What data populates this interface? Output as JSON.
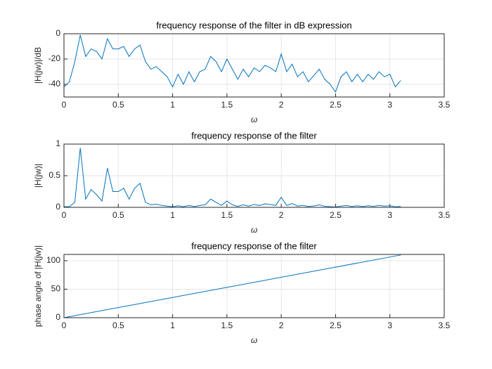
{
  "chart_data": [
    {
      "type": "line",
      "title": "frequency response of the filter in dB expression",
      "xlabel": "ω",
      "ylabel": "|H(jw)|/dB",
      "x": [
        0,
        0.05,
        0.1,
        0.15,
        0.2,
        0.25,
        0.3,
        0.35,
        0.4,
        0.45,
        0.5,
        0.55,
        0.6,
        0.65,
        0.7,
        0.75,
        0.8,
        0.85,
        0.9,
        0.95,
        1,
        1.05,
        1.1,
        1.15,
        1.2,
        1.25,
        1.3,
        1.35,
        1.4,
        1.45,
        1.5,
        1.55,
        1.6,
        1.65,
        1.7,
        1.75,
        1.8,
        1.85,
        1.9,
        1.95,
        2,
        2.05,
        2.1,
        2.15,
        2.2,
        2.25,
        2.3,
        2.35,
        2.4,
        2.45,
        2.5,
        2.55,
        2.6,
        2.65,
        2.7,
        2.75,
        2.8,
        2.85,
        2.9,
        2.95,
        3,
        3.05,
        3.1
      ],
      "series": [
        {
          "color": "#0072bd",
          "values": [
            -42,
            -38,
            -22,
            -1,
            -18,
            -12,
            -14,
            -20,
            -4,
            -12,
            -12,
            -10,
            -18,
            -12,
            -9,
            -22,
            -28,
            -26,
            -30,
            -34,
            -42,
            -32,
            -40,
            -30,
            -38,
            -30,
            -28,
            -18,
            -22,
            -30,
            -20,
            -28,
            -36,
            -28,
            -34,
            -27,
            -30,
            -25,
            -27,
            -30,
            -16,
            -30,
            -24,
            -34,
            -30,
            -38,
            -33,
            -28,
            -36,
            -40,
            -46,
            -34,
            -30,
            -38,
            -32,
            -38,
            -32,
            -36,
            -30,
            -34,
            -32,
            -42,
            -37
          ]
        }
      ],
      "xlim": [
        0,
        3.5
      ],
      "xticks": [
        0,
        0.5,
        1,
        1.5,
        2,
        2.5,
        3,
        3.5
      ],
      "ylim": [
        -50,
        0
      ],
      "yticks": [
        -40,
        -20,
        0
      ],
      "grid": true
    },
    {
      "type": "line",
      "title": "frequency response of the filter",
      "xlabel": "ω",
      "ylabel": "|H(jw)|",
      "x": [
        0,
        0.05,
        0.1,
        0.15,
        0.2,
        0.25,
        0.3,
        0.35,
        0.4,
        0.45,
        0.5,
        0.55,
        0.6,
        0.65,
        0.7,
        0.75,
        0.8,
        0.85,
        0.9,
        0.95,
        1,
        1.05,
        1.1,
        1.15,
        1.2,
        1.25,
        1.3,
        1.35,
        1.4,
        1.45,
        1.5,
        1.55,
        1.6,
        1.65,
        1.7,
        1.75,
        1.8,
        1.85,
        1.9,
        1.95,
        2,
        2.05,
        2.1,
        2.15,
        2.2,
        2.25,
        2.3,
        2.35,
        2.4,
        2.45,
        2.5,
        2.55,
        2.6,
        2.65,
        2.7,
        2.75,
        2.8,
        2.85,
        2.9,
        2.95,
        3,
        3.05,
        3.1
      ],
      "series": [
        {
          "color": "#0072bd",
          "values": [
            0.01,
            0.01,
            0.08,
            0.94,
            0.13,
            0.28,
            0.2,
            0.1,
            0.62,
            0.25,
            0.25,
            0.3,
            0.13,
            0.3,
            0.38,
            0.08,
            0.04,
            0.05,
            0.03,
            0.02,
            0.01,
            0.025,
            0.01,
            0.03,
            0.012,
            0.03,
            0.04,
            0.13,
            0.08,
            0.03,
            0.1,
            0.04,
            0.016,
            0.04,
            0.02,
            0.045,
            0.03,
            0.056,
            0.045,
            0.03,
            0.16,
            0.03,
            0.06,
            0.02,
            0.03,
            0.013,
            0.022,
            0.04,
            0.016,
            0.01,
            0.005,
            0.02,
            0.03,
            0.013,
            0.025,
            0.013,
            0.025,
            0.016,
            0.03,
            0.02,
            0.025,
            0.008,
            0.014
          ]
        }
      ],
      "xlim": [
        0,
        3.5
      ],
      "xticks": [
        0,
        0.5,
        1,
        1.5,
        2,
        2.5,
        3,
        3.5
      ],
      "ylim": [
        0,
        1
      ],
      "yticks": [
        0,
        0.5,
        1
      ],
      "grid": true
    },
    {
      "type": "line",
      "title": "frequency response of the filter",
      "xlabel": "ω",
      "ylabel": "phase angle of |H(jw)|",
      "x": [
        0,
        3.1
      ],
      "series": [
        {
          "color": "#0072bd",
          "values": [
            0,
            110
          ]
        }
      ],
      "xlim": [
        0,
        3.5
      ],
      "xticks": [
        0,
        0.5,
        1,
        1.5,
        2,
        2.5,
        3,
        3.5
      ],
      "ylim": [
        0,
        111
      ],
      "yticks": [
        0,
        50,
        100
      ],
      "grid": true
    }
  ]
}
